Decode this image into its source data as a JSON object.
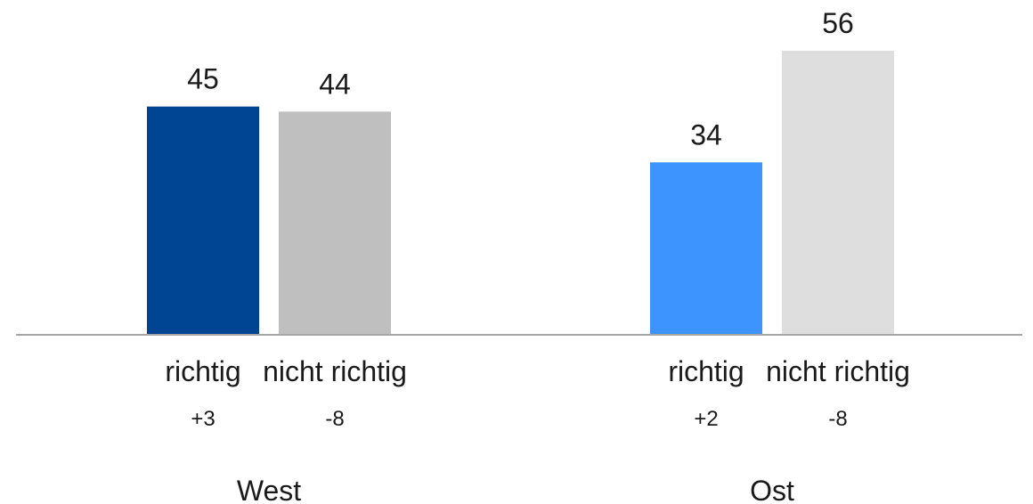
{
  "chart_data": {
    "type": "bar",
    "ylim": [
      0,
      60
    ],
    "grid": false,
    "groups": [
      {
        "name": "West",
        "bars": [
          {
            "label": "richtig",
            "value": 45,
            "change": "+3",
            "color": "#004494"
          },
          {
            "label": "nicht richtig",
            "value": 44,
            "change": "-8",
            "color": "#bfbfbf"
          }
        ]
      },
      {
        "name": "Ost",
        "bars": [
          {
            "label": "richtig",
            "value": 34,
            "change": "+2",
            "color": "#3d94ff"
          },
          {
            "label": "nicht richtig",
            "value": 56,
            "change": "-8",
            "color": "#dedede"
          }
        ]
      }
    ],
    "axis_color": "#a6a6a6"
  }
}
